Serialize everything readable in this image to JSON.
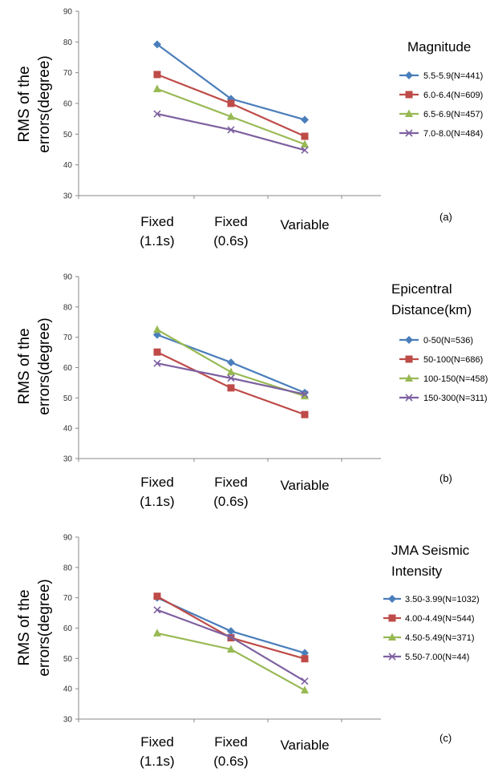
{
  "chart_data": [
    {
      "type": "line",
      "panel_label": "(a)",
      "ylabel_lines": [
        "RMS of the",
        "errors(degree)"
      ],
      "categories": [
        [
          "Fixed",
          "(1.1s)"
        ],
        [
          "Fixed",
          "(0.6s)"
        ],
        [
          "Variable"
        ]
      ],
      "yticks": [
        "90",
        "80",
        "70",
        "60",
        "50",
        "40",
        "30"
      ],
      "ylim": [
        30,
        90
      ],
      "legend_title_lines": [
        "Magnitude"
      ],
      "series": [
        {
          "name": "5.5-5.9(N=441)",
          "values": [
            79.2,
            61.5,
            54.7
          ],
          "color": "#4a7ebb",
          "marker": "diamond"
        },
        {
          "name": "6.0-6.4(N=609)",
          "values": [
            69.4,
            60.0,
            49.3
          ],
          "color": "#be4b48",
          "marker": "square"
        },
        {
          "name": "6.5-6.9(N=457)",
          "values": [
            64.7,
            55.7,
            46.7
          ],
          "color": "#98b954",
          "marker": "triangle"
        },
        {
          "name": "7.0-8.0(N=484)",
          "values": [
            56.6,
            51.4,
            44.8
          ],
          "color": "#7d60a0",
          "marker": "x"
        }
      ]
    },
    {
      "type": "line",
      "panel_label": "(b)",
      "ylabel_lines": [
        "RMS of the",
        "errors(degree)"
      ],
      "categories": [
        [
          "Fixed",
          "(1.1s)"
        ],
        [
          "Fixed",
          "(0.6s)"
        ],
        [
          "Variable"
        ]
      ],
      "yticks": [
        "90",
        "80",
        "70",
        "60",
        "50",
        "40",
        "30"
      ],
      "ylim": [
        30,
        90
      ],
      "legend_title_lines": [
        "Epicentral",
        "Distance(km)"
      ],
      "series": [
        {
          "name": "0-50(N=536)",
          "values": [
            70.8,
            61.7,
            51.7
          ],
          "color": "#4a7ebb",
          "marker": "diamond"
        },
        {
          "name": "50-100(N=686)",
          "values": [
            65.1,
            53.3,
            44.5
          ],
          "color": "#be4b48",
          "marker": "square"
        },
        {
          "name": "100-150(N=458)",
          "values": [
            72.5,
            58.5,
            50.6
          ],
          "color": "#98b954",
          "marker": "triangle"
        },
        {
          "name": "150-300(N=311)",
          "values": [
            61.4,
            56.5,
            51.2
          ],
          "color": "#7d60a0",
          "marker": "x"
        }
      ]
    },
    {
      "type": "line",
      "panel_label": "(c)",
      "ylabel_lines": [
        "RMS of the",
        "errors(degree)"
      ],
      "categories": [
        [
          "Fixed",
          "(1.1s)"
        ],
        [
          "Fixed",
          "(0.6s)"
        ],
        [
          "Variable"
        ]
      ],
      "yticks": [
        "90",
        "80",
        "70",
        "60",
        "50",
        "40",
        "30"
      ],
      "ylim": [
        30,
        90
      ],
      "legend_title_lines": [
        "JMA Seismic",
        "Intensity"
      ],
      "series": [
        {
          "name": "3.50-3.99(N=1032)",
          "values": [
            70.0,
            59.0,
            51.8
          ],
          "color": "#4a7ebb",
          "marker": "diamond"
        },
        {
          "name": "4.00-4.49(N=544)",
          "values": [
            70.5,
            56.8,
            49.9
          ],
          "color": "#be4b48",
          "marker": "square"
        },
        {
          "name": "4.50-5.49(N=371)",
          "values": [
            58.3,
            53.0,
            39.5
          ],
          "color": "#98b954",
          "marker": "triangle"
        },
        {
          "name": "5.50-7.00(N=44)",
          "values": [
            66.0,
            57.0,
            42.5
          ],
          "color": "#7d60a0",
          "marker": "x"
        }
      ]
    }
  ]
}
